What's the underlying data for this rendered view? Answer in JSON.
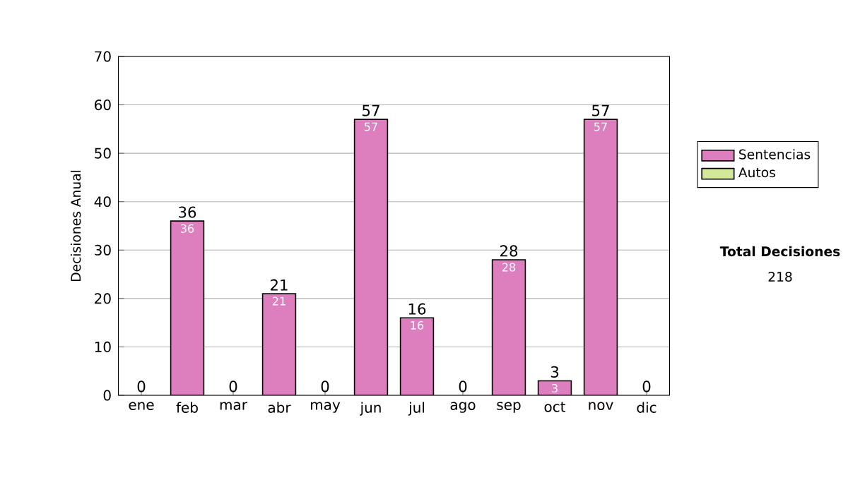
{
  "chart_data": {
    "type": "bar",
    "stacked": true,
    "ylabel": "Decisiones Anual",
    "categories": [
      "ene",
      "feb",
      "mar",
      "abr",
      "may",
      "jun",
      "jul",
      "ago",
      "sep",
      "oct",
      "nov",
      "dic"
    ],
    "series": [
      {
        "name": "Sentencias",
        "color": "#dd7fbf",
        "values": [
          0,
          36,
          0,
          21,
          0,
          57,
          16,
          0,
          28,
          3,
          57,
          0
        ],
        "value_labels": [
          null,
          "36",
          null,
          "21",
          null,
          "57",
          "16",
          null,
          "28",
          "3",
          "57",
          null
        ]
      },
      {
        "name": "Autos",
        "color": "#d4e89a",
        "values": [
          0,
          0,
          0,
          0,
          0,
          0,
          0,
          0,
          0,
          0,
          0,
          0
        ]
      }
    ],
    "totals": [
      "0",
      "36",
      "0",
      "21",
      "0",
      "57",
      "16",
      "0",
      "28",
      "3",
      "57",
      "0"
    ],
    "ylim": [
      0,
      70
    ],
    "yticks": [
      0,
      10,
      20,
      30,
      40,
      50,
      60,
      70
    ],
    "grid": "y",
    "legend": "right",
    "annotations": [
      "Total Decisiones",
      "218"
    ]
  }
}
